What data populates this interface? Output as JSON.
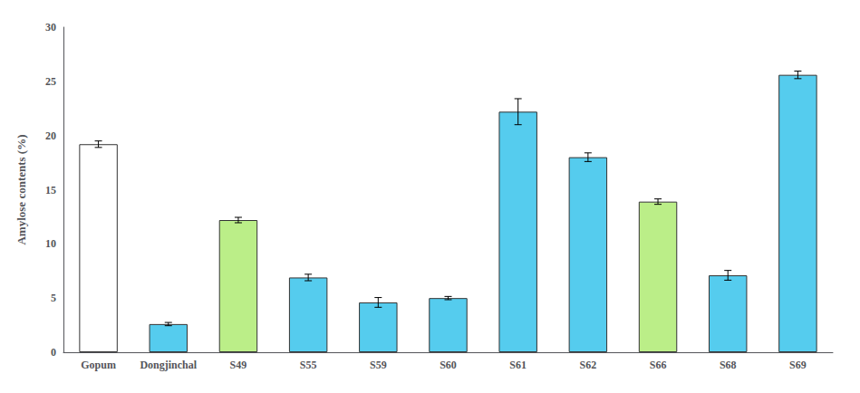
{
  "chart_data": {
    "type": "bar",
    "categories": [
      "Gopum",
      "Dongjinchal",
      "S49",
      "S55",
      "S59",
      "S60",
      "S61",
      "S62",
      "S66",
      "S68",
      "S69"
    ],
    "values": [
      19.2,
      2.6,
      12.2,
      6.9,
      4.6,
      5.0,
      22.2,
      18.0,
      13.9,
      7.1,
      25.6
    ],
    "errors": [
      0.3,
      0.15,
      0.25,
      0.3,
      0.45,
      0.15,
      1.2,
      0.4,
      0.25,
      0.45,
      0.35
    ],
    "colors": [
      "#ffffff",
      "#55ccee",
      "#bbee88",
      "#55ccee",
      "#55ccee",
      "#55ccee",
      "#55ccee",
      "#55ccee",
      "#bbee88",
      "#55ccee",
      "#55ccee"
    ],
    "ylabel": "Amylose contents (%)",
    "ylim": [
      0,
      30
    ],
    "yticks": [
      0,
      5,
      10,
      15,
      20,
      25,
      30
    ],
    "grid": false
  }
}
